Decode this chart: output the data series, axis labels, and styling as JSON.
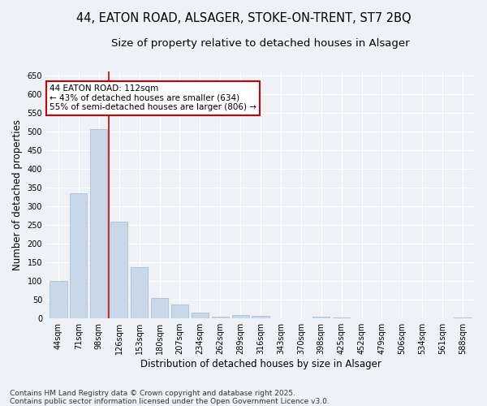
{
  "title_line1": "44, EATON ROAD, ALSAGER, STOKE-ON-TRENT, ST7 2BQ",
  "title_line2": "Size of property relative to detached houses in Alsager",
  "xlabel": "Distribution of detached houses by size in Alsager",
  "ylabel": "Number of detached properties",
  "categories": [
    "44sqm",
    "71sqm",
    "98sqm",
    "126sqm",
    "153sqm",
    "180sqm",
    "207sqm",
    "234sqm",
    "262sqm",
    "289sqm",
    "316sqm",
    "343sqm",
    "370sqm",
    "398sqm",
    "425sqm",
    "452sqm",
    "479sqm",
    "506sqm",
    "534sqm",
    "561sqm",
    "588sqm"
  ],
  "values": [
    100,
    335,
    505,
    258,
    138,
    55,
    37,
    16,
    5,
    9,
    8,
    0,
    0,
    5,
    2,
    0,
    0,
    0,
    0,
    0,
    3
  ],
  "bar_color": "#c8d8e8",
  "bar_edge_color": "#a0b8cc",
  "vline_x": 2.5,
  "vline_color": "#cc0000",
  "annotation_text": "44 EATON ROAD: 112sqm\n← 43% of detached houses are smaller (634)\n55% of semi-detached houses are larger (806) →",
  "annotation_box_color": "#ffffff",
  "annotation_box_edge_color": "#cc0000",
  "ylim": [
    0,
    660
  ],
  "yticks": [
    0,
    50,
    100,
    150,
    200,
    250,
    300,
    350,
    400,
    450,
    500,
    550,
    600,
    650
  ],
  "footnote": "Contains HM Land Registry data © Crown copyright and database right 2025.\nContains public sector information licensed under the Open Government Licence v3.0.",
  "background_color": "#eef2f6",
  "plot_bg_color": "#eef2f6",
  "grid_color": "#ffffff",
  "title_fontsize": 10.5,
  "subtitle_fontsize": 9.5,
  "tick_fontsize": 7,
  "label_fontsize": 8.5,
  "footnote_fontsize": 6.5,
  "annotation_fontsize": 7.5
}
